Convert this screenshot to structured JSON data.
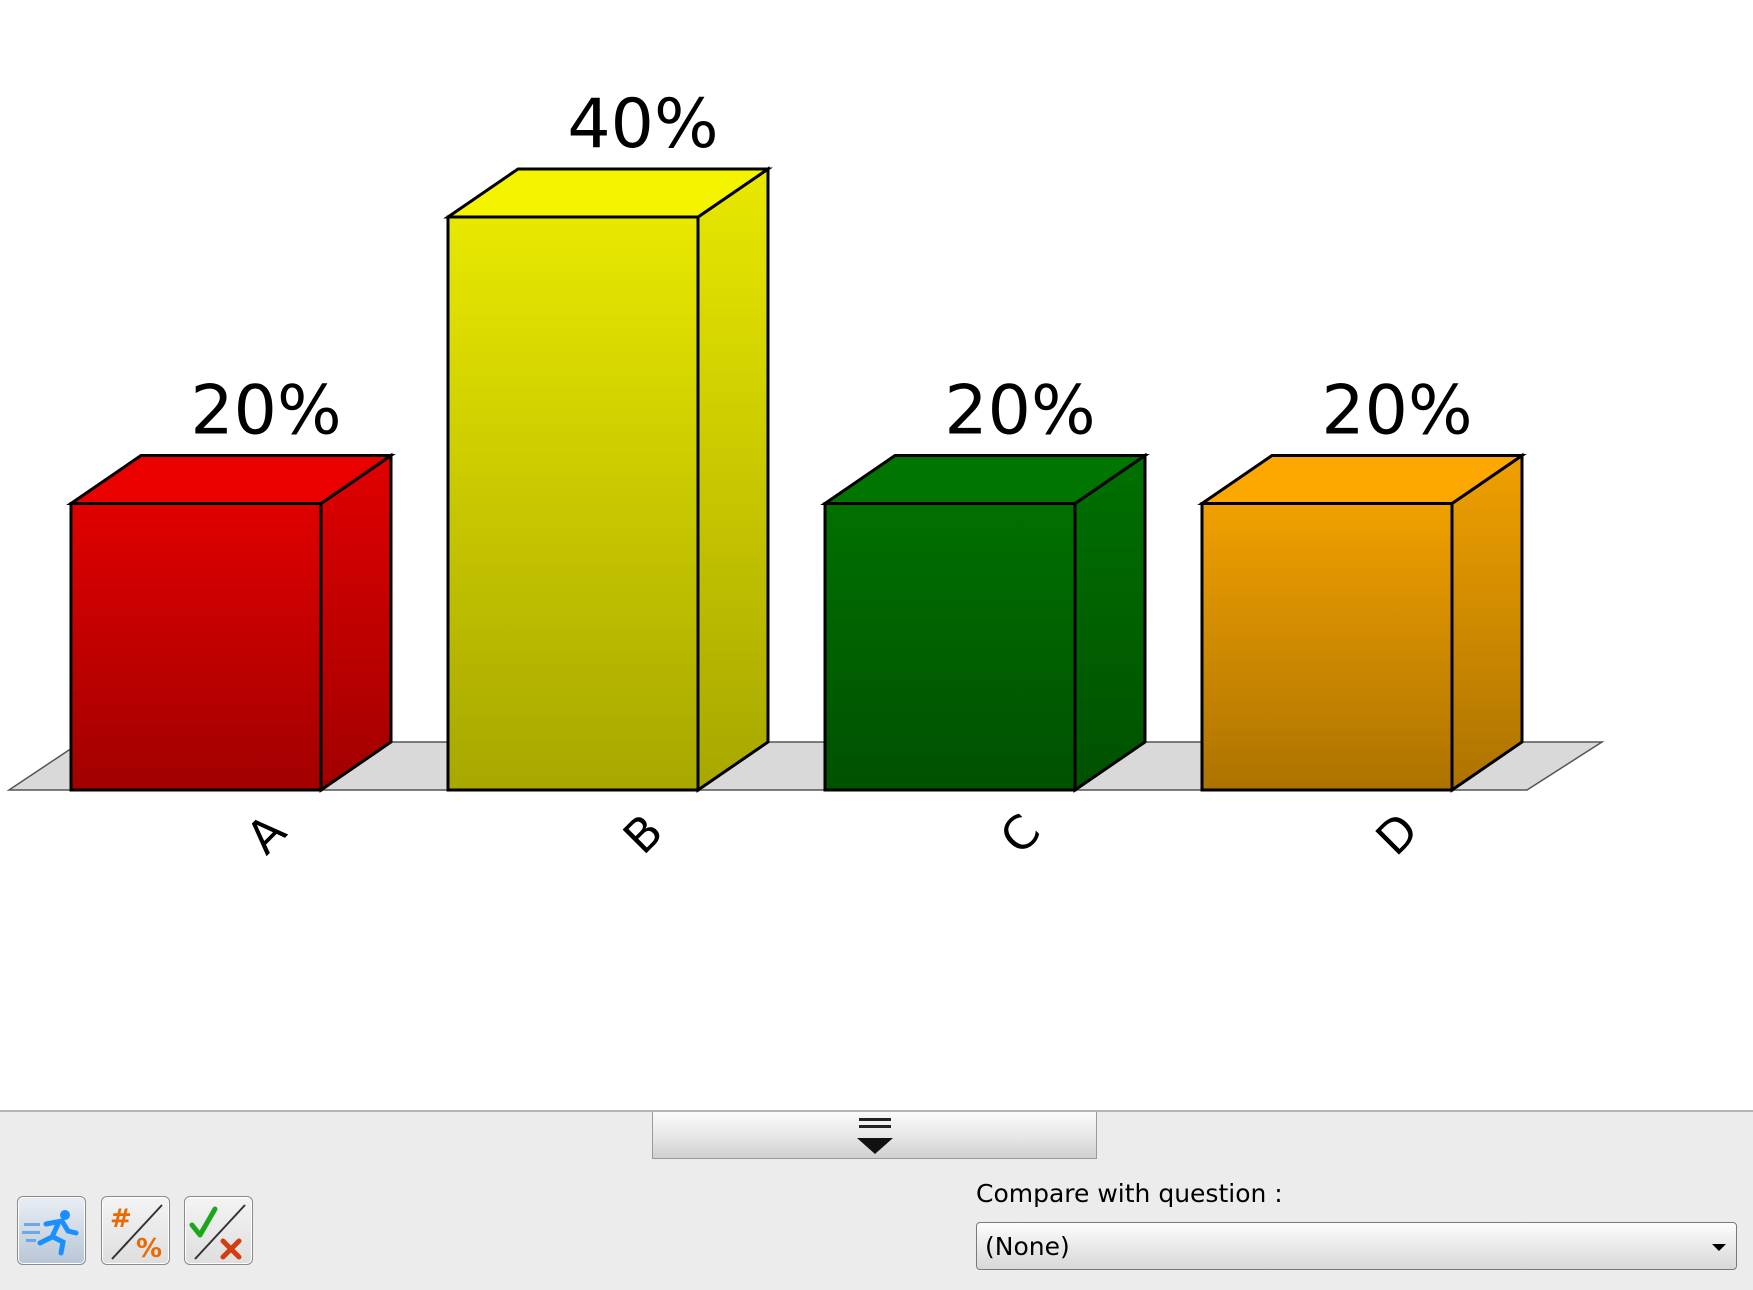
{
  "chart_data": {
    "type": "bar",
    "style": "3d",
    "categories": [
      "A",
      "B",
      "C",
      "D"
    ],
    "values": [
      20,
      40,
      20,
      20
    ],
    "value_labels": [
      "20%",
      "40%",
      "20%",
      "20%"
    ],
    "colors": [
      "#e00000",
      "#e8e800",
      "#007000",
      "#f0a000"
    ],
    "ylim": [
      0,
      40
    ],
    "title": "",
    "xlabel": "",
    "ylabel": "",
    "grid": false,
    "legend": "none"
  },
  "toolbar": {
    "buttons": [
      {
        "icon": "running-man-icon"
      },
      {
        "icon": "number-percent-icon"
      },
      {
        "icon": "check-cross-icon"
      }
    ]
  },
  "compare": {
    "label": "Compare with question :",
    "selected": "(None)"
  },
  "colors": {
    "panel_background": "#ececec",
    "floor": "#d9d9d9"
  }
}
